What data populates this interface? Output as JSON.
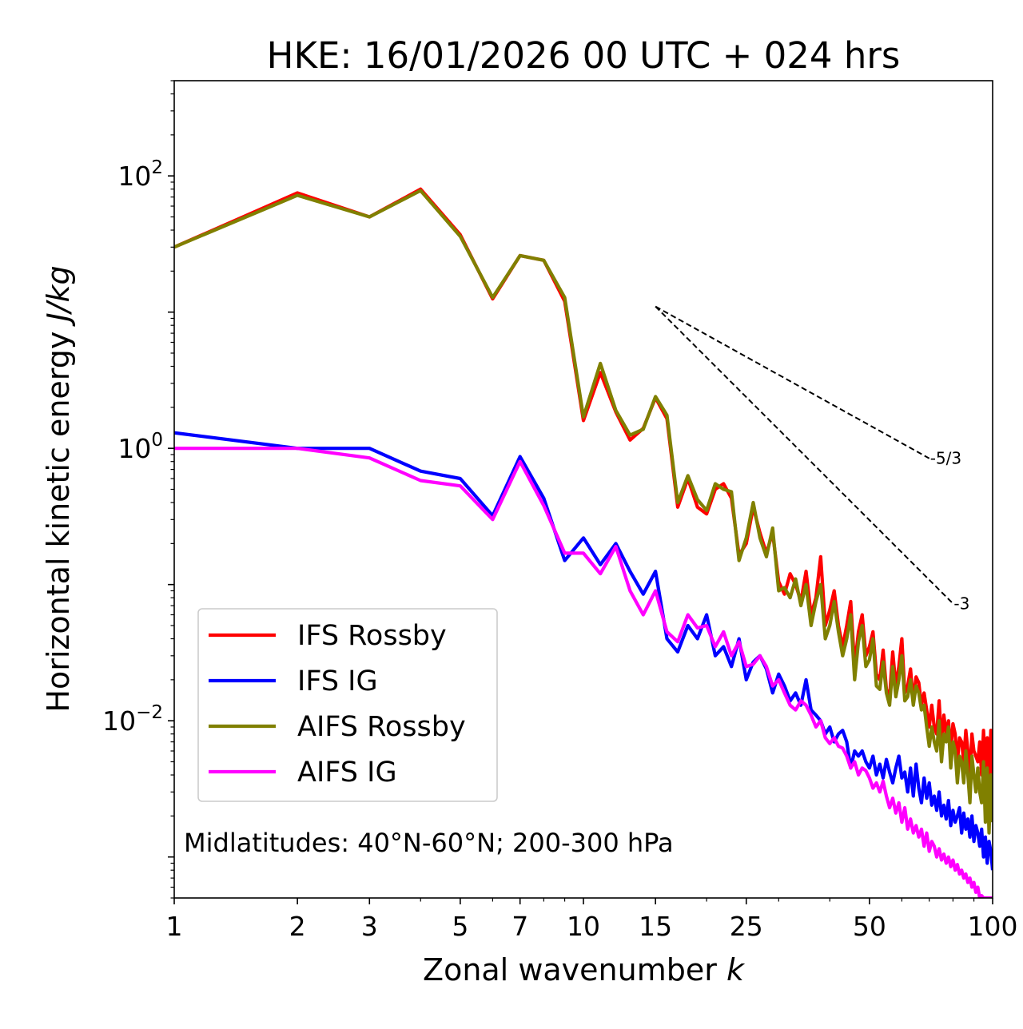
{
  "chart_data": {
    "type": "line",
    "title": "HKE: 16/01/2026 00 UTC + 024 hrs",
    "xlabel": "Zonal wavenumber",
    "xlabel_var": "k",
    "ylabel": "Horizontal kinetic energy",
    "ylabel_units": "J/kg",
    "xscale": "log",
    "yscale": "log",
    "xlim": [
      1,
      100
    ],
    "ylim": [
      0.0005,
      500
    ],
    "x_ticks": [
      1,
      2,
      3,
      5,
      7,
      10,
      15,
      25,
      50,
      100
    ],
    "x_tick_labels": [
      "1",
      "2",
      "3",
      "5",
      "7",
      "10",
      "15",
      "25",
      "50",
      "100"
    ],
    "y_ticks": [
      {
        "value": 100,
        "base": "10",
        "exp": "2"
      },
      {
        "value": 1,
        "base": "10",
        "exp": "0"
      },
      {
        "value": 0.01,
        "base": "10",
        "exp": "−2"
      }
    ],
    "annotation": "Midlatitudes: 40°N-60°N; 200-300 hPa",
    "legend_position": "lower-left",
    "reference_slopes": [
      {
        "label": "-5/3",
        "slope": -1.6667,
        "x0": 15,
        "y0": 11,
        "x1": 70
      },
      {
        "label": "-3",
        "slope": -3,
        "x0": 15,
        "y0": 11,
        "x1": 80
      }
    ],
    "series": [
      {
        "name": "IFS Rossby",
        "color": "#ff0000",
        "values": [
          30,
          75,
          50,
          80,
          37,
          12.5,
          26,
          24,
          12,
          1.6,
          3.6,
          1.85,
          1.15,
          1.4,
          2.35,
          1.65,
          0.37,
          0.6,
          0.37,
          0.33,
          0.5,
          0.55,
          0.43,
          0.165,
          0.2,
          0.37,
          0.24,
          0.17,
          0.24,
          0.105,
          0.085,
          0.12,
          0.1,
          0.075,
          0.125,
          0.06,
          0.08,
          0.16,
          0.05,
          0.065,
          0.09,
          0.05,
          0.035,
          0.05,
          0.075,
          0.025,
          0.045,
          0.06,
          0.03,
          0.035,
          0.045,
          0.022,
          0.02,
          0.033,
          0.017,
          0.015,
          0.032,
          0.018,
          0.025,
          0.04,
          0.016,
          0.018,
          0.024,
          0.014,
          0.021,
          0.019,
          0.013,
          0.016,
          0.012,
          0.009,
          0.013,
          0.009,
          0.008,
          0.014,
          0.007,
          0.011,
          0.008,
          0.01,
          0.006,
          0.0095,
          0.008,
          0.005,
          0.0075,
          0.007,
          0.005,
          0.0085,
          0.006,
          0.004,
          0.008,
          0.006,
          0.0055,
          0.005,
          0.007,
          0.004,
          0.0085,
          0.0045,
          0.0075,
          0.0035,
          0.0085,
          0.004
        ]
      },
      {
        "name": "IFS IG",
        "color": "#0000ff",
        "values": [
          1.3,
          1,
          1,
          0.68,
          0.6,
          0.32,
          0.87,
          0.43,
          0.15,
          0.22,
          0.14,
          0.2,
          0.125,
          0.085,
          0.125,
          0.04,
          0.032,
          0.05,
          0.04,
          0.06,
          0.03,
          0.035,
          0.025,
          0.04,
          0.02,
          0.027,
          0.03,
          0.024,
          0.016,
          0.022,
          0.018,
          0.014,
          0.016,
          0.013,
          0.02,
          0.012,
          0.011,
          0.01,
          0.008,
          0.009,
          0.007,
          0.008,
          0.0085,
          0.007,
          0.0045,
          0.006,
          0.0055,
          0.006,
          0.005,
          0.0045,
          0.0055,
          0.004,
          0.0048,
          0.0038,
          0.0052,
          0.0042,
          0.0035,
          0.0045,
          0.0055,
          0.0038,
          0.0042,
          0.003,
          0.0045,
          0.0028,
          0.0048,
          0.0032,
          0.0025,
          0.0038,
          0.0027,
          0.0035,
          0.0024,
          0.0028,
          0.0022,
          0.003,
          0.002,
          0.0024,
          0.0019,
          0.0026,
          0.0017,
          0.0022,
          0.0018,
          0.002,
          0.0023,
          0.0015,
          0.0021,
          0.0016,
          0.0019,
          0.0014,
          0.002,
          0.0013,
          0.0017,
          0.0015,
          0.0012,
          0.0016,
          0.001,
          0.0014,
          0.0009,
          0.0013,
          0.0011,
          0.0008
        ]
      },
      {
        "name": "AIFS Rossby",
        "color": "#808000",
        "values": [
          30,
          72,
          50,
          78,
          36,
          12.8,
          26,
          24,
          12.8,
          1.7,
          4.2,
          1.9,
          1.25,
          1.38,
          2.4,
          1.75,
          0.4,
          0.63,
          0.42,
          0.35,
          0.55,
          0.5,
          0.48,
          0.15,
          0.22,
          0.4,
          0.22,
          0.16,
          0.26,
          0.09,
          0.095,
          0.08,
          0.11,
          0.07,
          0.1,
          0.05,
          0.075,
          0.1,
          0.04,
          0.05,
          0.075,
          0.045,
          0.03,
          0.04,
          0.06,
          0.02,
          0.038,
          0.05,
          0.025,
          0.028,
          0.04,
          0.018,
          0.017,
          0.027,
          0.016,
          0.013,
          0.025,
          0.015,
          0.02,
          0.03,
          0.014,
          0.015,
          0.02,
          0.013,
          0.018,
          0.016,
          0.012,
          0.013,
          0.009,
          0.0065,
          0.009,
          0.007,
          0.006,
          0.01,
          0.005,
          0.008,
          0.007,
          0.009,
          0.0045,
          0.007,
          0.006,
          0.0035,
          0.0055,
          0.005,
          0.0035,
          0.006,
          0.004,
          0.0025,
          0.0055,
          0.004,
          0.003,
          0.0045,
          0.003,
          0.0025,
          0.005,
          0.0018,
          0.0045,
          0.0015,
          0.004,
          0.0018
        ]
      },
      {
        "name": "AIFS IG",
        "color": "#ff00ff",
        "values": [
          1,
          1,
          0.85,
          0.58,
          0.53,
          0.3,
          0.8,
          0.38,
          0.17,
          0.17,
          0.12,
          0.19,
          0.09,
          0.06,
          0.09,
          0.045,
          0.038,
          0.06,
          0.048,
          0.05,
          0.035,
          0.045,
          0.03,
          0.038,
          0.025,
          0.026,
          0.03,
          0.025,
          0.018,
          0.02,
          0.016,
          0.013,
          0.012,
          0.014,
          0.013,
          0.011,
          0.009,
          0.01,
          0.0075,
          0.0068,
          0.0075,
          0.0065,
          0.0063,
          0.0055,
          0.0045,
          0.005,
          0.004,
          0.0045,
          0.0043,
          0.0038,
          0.0032,
          0.0035,
          0.003,
          0.0036,
          0.0028,
          0.0023,
          0.0027,
          0.0021,
          0.0025,
          0.0018,
          0.0023,
          0.0016,
          0.0019,
          0.0015,
          0.0017,
          0.0014,
          0.0016,
          0.0012,
          0.0015,
          0.0011,
          0.0013,
          0.0012,
          0.001,
          0.00115,
          0.00095,
          0.00105,
          0.0009,
          0.001,
          0.00085,
          0.00095,
          0.0008,
          0.00088,
          0.00075,
          0.0008,
          0.0007,
          0.00075,
          0.00065,
          0.0007,
          0.0006,
          0.00065,
          0.00055,
          0.0006,
          0.0005,
          0.00052,
          0.0005,
          0.0005,
          0.0005,
          0.0005,
          0.0005,
          0.0005
        ]
      }
    ]
  }
}
